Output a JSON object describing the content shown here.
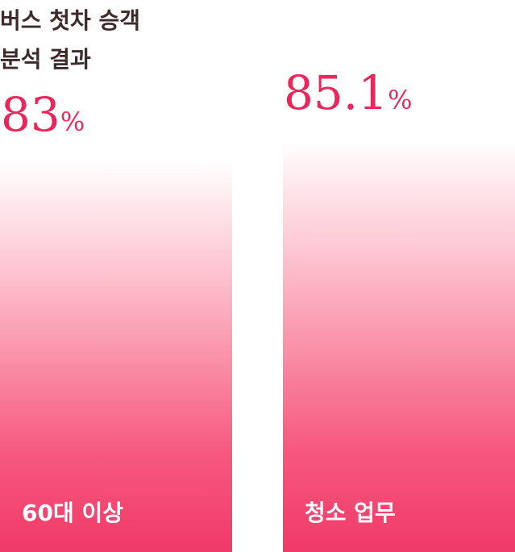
{
  "chart_data": {
    "type": "bar",
    "title_lines": [
      "버스 첫차 승객",
      "분석 결과"
    ],
    "categories": [
      "60대 이상",
      "청소 업무"
    ],
    "values": [
      83,
      85.1
    ],
    "value_labels": [
      "83",
      "85.1"
    ],
    "unit": "%",
    "colors": {
      "bar_top": "#ffffff",
      "bar_bottom": "#f03a68",
      "value_text": "#e8275a",
      "title_text": "#3d2b2b",
      "label_text": "#ffffff"
    },
    "ylim": [
      0,
      100
    ],
    "grid": false,
    "legend": "none"
  }
}
